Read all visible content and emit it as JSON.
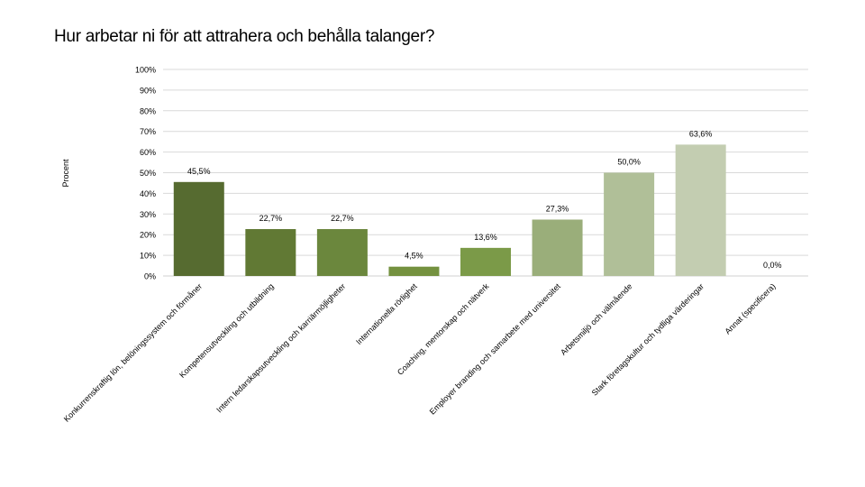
{
  "chart_data": {
    "type": "bar",
    "title": "Hur arbetar ni för att attrahera och behålla talanger?",
    "xlabel": "",
    "ylabel": "Procent",
    "ylim": [
      0,
      100
    ],
    "yticks": [
      "0%",
      "10%",
      "20%",
      "30%",
      "40%",
      "50%",
      "60%",
      "70%",
      "80%",
      "90%",
      "100%"
    ],
    "grid": true,
    "categories": [
      "Konkurrenskraftig lön, belöningssystem och förmåner",
      "Kompetensutveckling och utbildning",
      "Intern ledarskapsutveckling och karriärmöjligheter",
      "Internationella rörlighet",
      "Coaching, mentorskap och nätverk",
      "Employer branding och samarbete med universitet",
      "Arbetsmiljö och välmående",
      "Stark företagskultur och tydliga värderingar",
      "Annat (specificera)"
    ],
    "values": [
      45.5,
      22.7,
      22.7,
      4.5,
      13.6,
      27.3,
      50.0,
      63.6,
      0.0
    ],
    "data_labels": [
      "45,5%",
      "22,7%",
      "22,7%",
      "4,5%",
      "13,6%",
      "27,3%",
      "50,0%",
      "63,6%",
      "0,0%"
    ],
    "colors": [
      "#566b30",
      "#617934",
      "#6b873d",
      "#74913f",
      "#7b9a48",
      "#9aae7a",
      "#b0bf98",
      "#c3cdb1",
      "#d0d8c2"
    ]
  }
}
